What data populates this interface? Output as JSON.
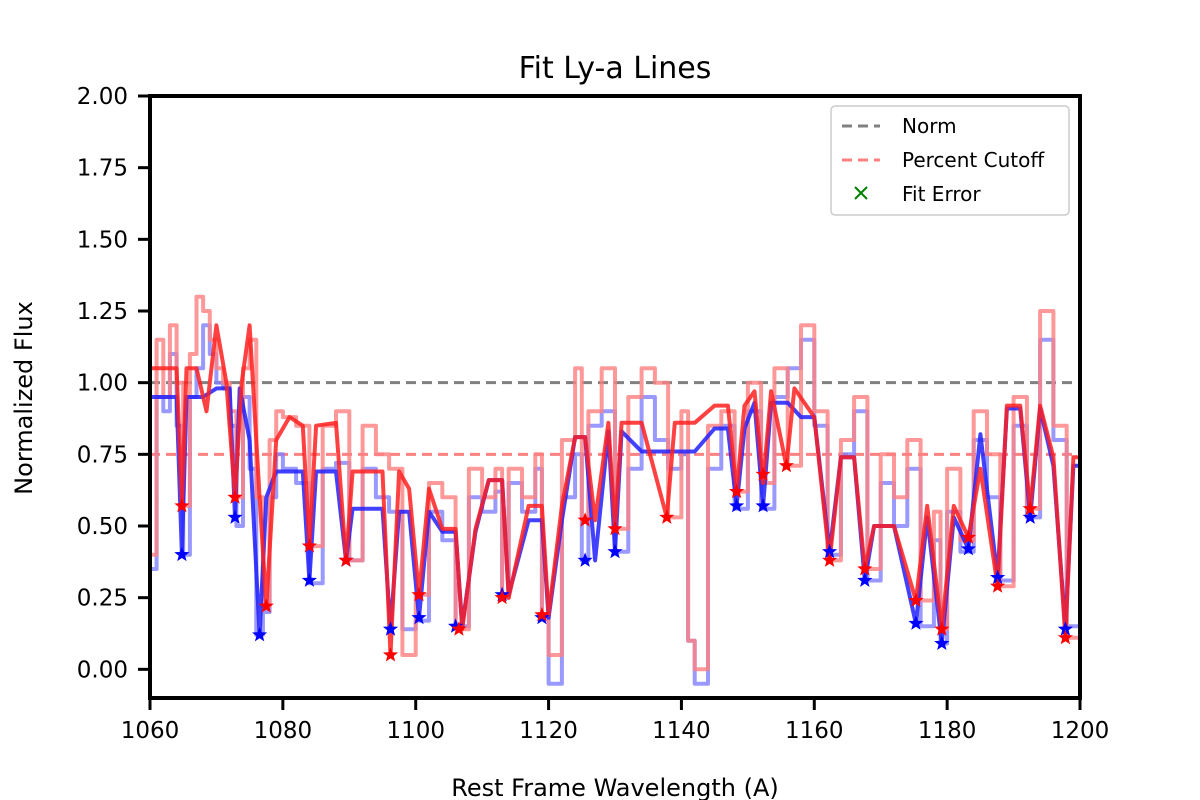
{
  "chart_data": {
    "type": "line",
    "title": "Fit Ly-a Lines",
    "xlabel": "Rest Frame Wavelength (A)",
    "ylabel": "Normalized Flux",
    "xlim": [
      1060,
      1200
    ],
    "ylim": [
      -0.1,
      2.0
    ],
    "xticks": [
      "1060",
      "1080",
      "1100",
      "1120",
      "1140",
      "1160",
      "1180",
      "1200"
    ],
    "yticks": [
      "0.00",
      "0.25",
      "0.50",
      "0.75",
      "1.00",
      "1.25",
      "1.50",
      "1.75",
      "2.00"
    ],
    "legend_position": "top-right",
    "legend": [
      {
        "label": "Norm",
        "style": "dashed-line",
        "color": "#808080"
      },
      {
        "label": "Percent Cutoff",
        "style": "dashed-line",
        "color": "#ff8080"
      },
      {
        "label": "Fit Error",
        "style": "x-marker",
        "color": "#008000"
      }
    ],
    "reference_lines": [
      {
        "name": "Norm",
        "y": 1.0,
        "color": "#808080"
      },
      {
        "name": "Percent Cutoff",
        "y": 0.75,
        "color": "#ff8080"
      }
    ],
    "colors": {
      "blue_spectrum": "#8080ff",
      "red_spectrum": "#ff8080",
      "blue_fit": "#2020ff",
      "red_fit": "#ff2020",
      "overlap": "#b03080"
    },
    "series": [
      {
        "role": "blue-spectrum",
        "color": "#8080ff",
        "x": [
          1060,
          1061,
          1062,
          1063,
          1064,
          1065,
          1066,
          1067,
          1068,
          1069,
          1070,
          1071,
          1072,
          1073,
          1074,
          1075,
          1076,
          1077,
          1078,
          1079,
          1080,
          1082,
          1084,
          1086,
          1088,
          1090,
          1092,
          1094,
          1096,
          1098,
          1100,
          1102,
          1104,
          1106,
          1108,
          1110,
          1112,
          1113,
          1114,
          1116,
          1118,
          1119,
          1120,
          1122,
          1124,
          1125,
          1126,
          1128,
          1130,
          1132,
          1134,
          1136,
          1138,
          1140,
          1141,
          1142,
          1144,
          1146,
          1148,
          1150,
          1152,
          1154,
          1156,
          1158,
          1160,
          1162,
          1164,
          1166,
          1168,
          1170,
          1172,
          1174,
          1176,
          1178,
          1179,
          1180,
          1182,
          1184,
          1186,
          1188,
          1190,
          1192,
          1194,
          1196,
          1198,
          1200
        ],
        "y": [
          0.35,
          0.95,
          0.9,
          1.1,
          0.85,
          0.4,
          0.95,
          1.05,
          1.2,
          1.1,
          1.0,
          0.98,
          0.85,
          0.5,
          0.95,
          0.7,
          0.12,
          0.2,
          0.6,
          0.75,
          0.7,
          0.65,
          0.3,
          0.7,
          0.72,
          0.38,
          0.7,
          0.6,
          0.55,
          0.14,
          0.17,
          0.55,
          0.45,
          0.15,
          0.6,
          0.55,
          0.62,
          0.25,
          0.65,
          0.55,
          0.7,
          0.18,
          -0.05,
          0.6,
          0.75,
          0.38,
          0.85,
          0.9,
          0.41,
          0.7,
          0.95,
          0.8,
          0.7,
          0.75,
          0.1,
          -0.05,
          0.7,
          0.85,
          0.56,
          0.9,
          0.56,
          0.95,
          1.05,
          1.15,
          0.85,
          0.4,
          0.75,
          0.9,
          0.31,
          0.65,
          0.5,
          0.7,
          0.15,
          0.45,
          0.09,
          0.55,
          0.41,
          0.8,
          0.6,
          0.31,
          0.85,
          0.53,
          1.15,
          0.8,
          0.15,
          0.7
        ]
      },
      {
        "role": "red-spectrum",
        "color": "#ff8080",
        "x": [
          1060,
          1061,
          1062,
          1063,
          1064,
          1065,
          1066,
          1067,
          1068,
          1069,
          1070,
          1071,
          1072,
          1073,
          1074,
          1075,
          1076,
          1077,
          1078,
          1079,
          1080,
          1082,
          1084,
          1086,
          1088,
          1090,
          1092,
          1094,
          1096,
          1098,
          1100,
          1102,
          1104,
          1106,
          1108,
          1110,
          1112,
          1113,
          1114,
          1116,
          1118,
          1119,
          1120,
          1122,
          1124,
          1125,
          1126,
          1128,
          1130,
          1132,
          1134,
          1136,
          1138,
          1140,
          1141,
          1142,
          1144,
          1146,
          1148,
          1150,
          1152,
          1154,
          1156,
          1158,
          1160,
          1162,
          1164,
          1166,
          1168,
          1170,
          1172,
          1174,
          1176,
          1178,
          1179,
          1180,
          1182,
          1184,
          1186,
          1188,
          1190,
          1192,
          1194,
          1196,
          1198,
          1200
        ],
        "y": [
          0.4,
          1.15,
          0.95,
          1.2,
          1.0,
          0.57,
          1.1,
          1.3,
          1.25,
          1.15,
          1.05,
          1.0,
          0.9,
          0.6,
          1.05,
          1.15,
          0.6,
          0.22,
          0.8,
          0.9,
          0.88,
          0.85,
          0.43,
          0.85,
          0.9,
          0.38,
          0.85,
          0.75,
          0.7,
          0.05,
          0.26,
          0.65,
          0.6,
          0.14,
          0.7,
          0.6,
          0.7,
          0.25,
          0.7,
          0.6,
          0.75,
          0.19,
          0.05,
          0.8,
          1.05,
          0.52,
          0.9,
          1.05,
          0.49,
          0.95,
          1.05,
          1.0,
          0.53,
          0.9,
          0.1,
          0.0,
          0.85,
          0.9,
          0.62,
          1.0,
          0.65,
          1.05,
          0.71,
          1.2,
          0.9,
          0.38,
          0.8,
          0.95,
          0.35,
          0.75,
          0.6,
          0.8,
          0.24,
          0.55,
          0.14,
          0.7,
          0.45,
          0.9,
          0.75,
          0.29,
          0.95,
          0.56,
          1.25,
          0.85,
          0.11,
          0.75
        ]
      },
      {
        "role": "blue-fit",
        "color": "#2020ff",
        "x": [
          1060,
          1062,
          1064,
          1064.8,
          1065.5,
          1068,
          1070,
          1072,
          1072.8,
          1073.5,
          1075,
          1076.5,
          1077.5,
          1079,
          1081,
          1083,
          1084,
          1085,
          1088,
          1089.5,
          1090.5,
          1093,
          1095,
          1096.2,
          1097.5,
          1099,
          1100.5,
          1102,
          1104,
          1106,
          1107,
          1109,
          1111,
          1113,
          1114,
          1117,
          1119,
          1120,
          1122,
          1124,
          1125.5,
          1127,
          1129,
          1130,
          1131,
          1134,
          1138,
          1140,
          1142,
          1145,
          1147,
          1148.3,
          1149.5,
          1151,
          1152.3,
          1153.5,
          1156,
          1158,
          1160,
          1162.3,
          1164,
          1166,
          1167.6,
          1169,
          1172,
          1175.3,
          1177,
          1179.2,
          1181,
          1183.2,
          1185,
          1187.6,
          1189,
          1191,
          1192.5,
          1194,
          1196,
          1197.8,
          1199,
          1200
        ],
        "y": [
          0.95,
          0.95,
          0.95,
          0.4,
          0.95,
          0.95,
          0.98,
          0.98,
          0.53,
          0.98,
          0.8,
          0.12,
          0.6,
          0.69,
          0.69,
          0.69,
          0.31,
          0.69,
          0.69,
          0.38,
          0.56,
          0.56,
          0.56,
          0.14,
          0.55,
          0.55,
          0.18,
          0.55,
          0.48,
          0.48,
          0.15,
          0.48,
          0.66,
          0.66,
          0.26,
          0.52,
          0.52,
          0.18,
          0.52,
          0.81,
          0.81,
          0.38,
          0.83,
          0.41,
          0.83,
          0.76,
          0.76,
          0.76,
          0.76,
          0.84,
          0.84,
          0.57,
          0.84,
          0.93,
          0.57,
          0.93,
          0.93,
          0.88,
          0.88,
          0.41,
          0.74,
          0.74,
          0.31,
          0.5,
          0.5,
          0.16,
          0.53,
          0.09,
          0.53,
          0.42,
          0.82,
          0.32,
          0.91,
          0.91,
          0.53,
          0.91,
          0.71,
          0.14,
          0.71,
          0.71
        ]
      },
      {
        "role": "red-fit",
        "color": "#ff2020",
        "x": [
          1060,
          1062,
          1064,
          1064.8,
          1065.5,
          1067,
          1068.5,
          1070,
          1071.5,
          1072.8,
          1073.8,
          1075,
          1076.5,
          1077.5,
          1079,
          1081,
          1083,
          1084,
          1085,
          1088,
          1089.5,
          1090.5,
          1093,
          1095,
          1096.2,
          1097.5,
          1099,
          1100.5,
          1102,
          1104,
          1106,
          1107,
          1109,
          1111,
          1113,
          1114,
          1117,
          1119,
          1120,
          1122,
          1124,
          1125.5,
          1127,
          1129,
          1130,
          1131,
          1134,
          1137.8,
          1139,
          1142,
          1145,
          1147,
          1148.3,
          1149.5,
          1151,
          1152.3,
          1153.5,
          1155.8,
          1157,
          1160,
          1162.3,
          1164,
          1166,
          1167.6,
          1169,
          1172,
          1175.3,
          1177,
          1179.2,
          1181,
          1183.2,
          1185,
          1187.6,
          1189,
          1191,
          1192.5,
          1194,
          1196,
          1197.8,
          1199,
          1200
        ],
        "y": [
          1.05,
          1.05,
          1.05,
          0.57,
          1.05,
          1.05,
          0.9,
          1.2,
          1.0,
          0.6,
          1.0,
          1.2,
          0.6,
          0.22,
          0.8,
          0.88,
          0.85,
          0.43,
          0.85,
          0.86,
          0.38,
          0.69,
          0.69,
          0.69,
          0.05,
          0.69,
          0.63,
          0.26,
          0.63,
          0.49,
          0.49,
          0.14,
          0.49,
          0.66,
          0.66,
          0.25,
          0.57,
          0.57,
          0.19,
          0.57,
          0.81,
          0.81,
          0.52,
          0.86,
          0.49,
          0.86,
          0.86,
          0.53,
          0.86,
          0.86,
          0.92,
          0.92,
          0.62,
          0.92,
          0.97,
          0.65,
          0.97,
          0.71,
          0.98,
          0.88,
          0.38,
          0.74,
          0.74,
          0.35,
          0.5,
          0.5,
          0.24,
          0.57,
          0.14,
          0.57,
          0.46,
          0.7,
          0.29,
          0.92,
          0.92,
          0.56,
          0.92,
          0.74,
          0.11,
          0.74,
          0.74
        ]
      }
    ],
    "blue_star_markers": {
      "color": "#0000ff",
      "points": [
        [
          1064.8,
          0.4
        ],
        [
          1072.8,
          0.53
        ],
        [
          1076.5,
          0.12
        ],
        [
          1084,
          0.31
        ],
        [
          1089.5,
          0.38
        ],
        [
          1096.2,
          0.14
        ],
        [
          1100.5,
          0.18
        ],
        [
          1106,
          0.15
        ],
        [
          1113,
          0.26
        ],
        [
          1119,
          0.18
        ],
        [
          1125.5,
          0.38
        ],
        [
          1130,
          0.41
        ],
        [
          1148.3,
          0.57
        ],
        [
          1152.3,
          0.57
        ],
        [
          1162.3,
          0.41
        ],
        [
          1167.6,
          0.31
        ],
        [
          1175.3,
          0.16
        ],
        [
          1179.2,
          0.09
        ],
        [
          1183.2,
          0.42
        ],
        [
          1187.6,
          0.32
        ],
        [
          1192.5,
          0.53
        ],
        [
          1197.8,
          0.14
        ]
      ]
    },
    "red_star_markers": {
      "color": "#ff0000",
      "points": [
        [
          1064.8,
          0.57
        ],
        [
          1072.8,
          0.6
        ],
        [
          1077.5,
          0.22
        ],
        [
          1084,
          0.43
        ],
        [
          1089.5,
          0.38
        ],
        [
          1096.2,
          0.05
        ],
        [
          1100.5,
          0.26
        ],
        [
          1106.5,
          0.14
        ],
        [
          1113,
          0.25
        ],
        [
          1119,
          0.19
        ],
        [
          1125.5,
          0.52
        ],
        [
          1130,
          0.49
        ],
        [
          1137.8,
          0.53
        ],
        [
          1148.3,
          0.62
        ],
        [
          1152.3,
          0.68
        ],
        [
          1155.8,
          0.71
        ],
        [
          1162.3,
          0.38
        ],
        [
          1167.6,
          0.35
        ],
        [
          1175.3,
          0.24
        ],
        [
          1179.2,
          0.14
        ],
        [
          1183.2,
          0.46
        ],
        [
          1187.6,
          0.29
        ],
        [
          1192.5,
          0.56
        ],
        [
          1197.8,
          0.11
        ]
      ]
    }
  }
}
